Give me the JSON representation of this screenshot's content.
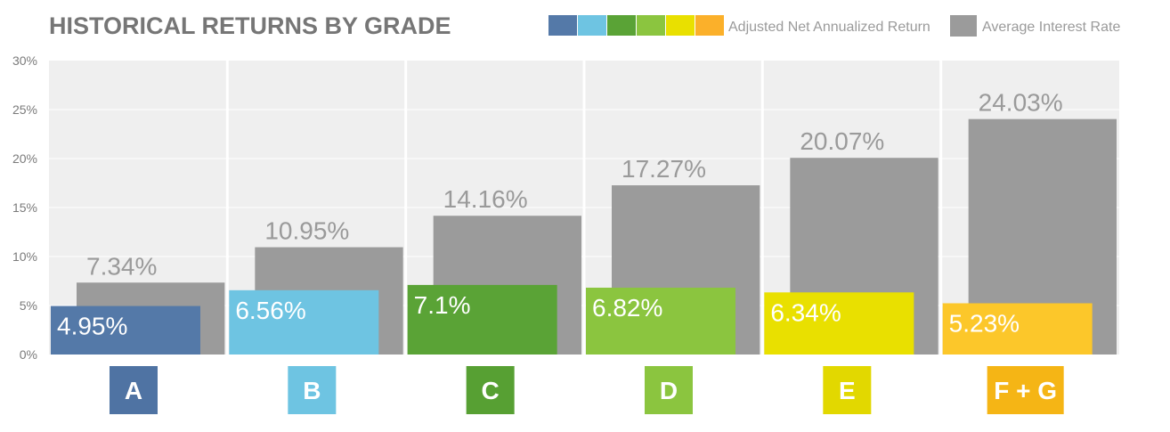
{
  "chart_data": {
    "type": "bar",
    "title": "HISTORICAL RETURNS BY GRADE",
    "categories": [
      "A",
      "B",
      "C",
      "D",
      "E",
      "F + G"
    ],
    "series": [
      {
        "name": "Adjusted Net Annualized Return",
        "values": [
          4.95,
          6.56,
          7.1,
          6.82,
          6.34,
          5.23
        ],
        "labels": [
          "4.95%",
          "6.56%",
          "7.1%",
          "6.82%",
          "6.34%",
          "5.23%"
        ],
        "colors": [
          "#5479a8",
          "#6ec4e2",
          "#5aa336",
          "#8bc53f",
          "#e9e000",
          "#fcc72a"
        ]
      },
      {
        "name": "Average Interest Rate",
        "values": [
          7.34,
          10.95,
          14.16,
          17.27,
          20.07,
          24.03
        ],
        "labels": [
          "7.34%",
          "10.95%",
          "14.16%",
          "17.27%",
          "20.07%",
          "24.03%"
        ],
        "color": "#9b9b9b"
      }
    ],
    "badge_colors": [
      "#4f73a3",
      "#6ec4e2",
      "#57a033",
      "#8bc53f",
      "#e2d800",
      "#f5b515"
    ],
    "legend_swatch_colors": [
      "#5479a8",
      "#6ec4e2",
      "#5aa336",
      "#8bc53f",
      "#e9e000",
      "#fbb02a"
    ],
    "ylim": [
      0,
      30
    ],
    "yticks": [
      0,
      5,
      10,
      15,
      20,
      25,
      30
    ],
    "ytick_labels": [
      "0%",
      "5%",
      "10%",
      "15%",
      "20%",
      "25%",
      "30%"
    ],
    "grid": true,
    "legend_position": "top-right",
    "plot_background": "#efefef"
  }
}
